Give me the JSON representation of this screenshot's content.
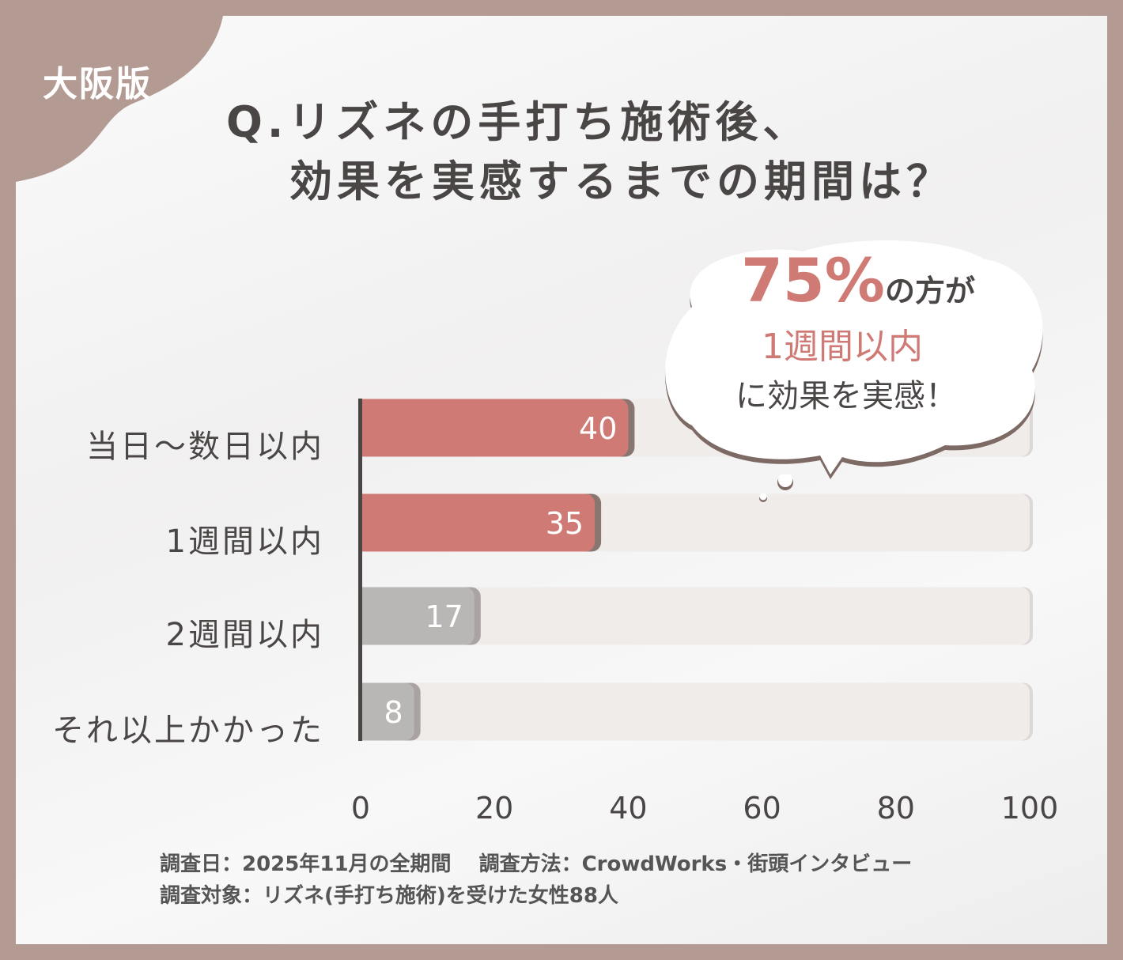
{
  "badge": "大阪版",
  "title": {
    "line1": "Q.リズネの手打ち施術後、",
    "line2": "効果を実感するまでの期間は？"
  },
  "callout": {
    "pct": "75%",
    "tail": "の方が",
    "highlight": "1週間以内",
    "line3": "に効果を実感！"
  },
  "colors": {
    "highlight": "#cf7a74",
    "muted": "#b9b6b6",
    "track": "#f0ecea",
    "shadow": "#8a7670",
    "background": "#b39b93"
  },
  "chart_data": {
    "type": "bar",
    "orientation": "horizontal",
    "categories": [
      "当日～数日以内",
      "1週間以内",
      "2週間以内",
      "それ以上かかった"
    ],
    "values": [
      40,
      35,
      17,
      8
    ],
    "xlim": [
      0,
      100
    ],
    "xticks": [
      "0",
      "20",
      "40",
      "60",
      "80",
      "100"
    ],
    "grid": false
  },
  "footer": {
    "line1": "調査日：2025年11月の全期間　 調査方法：CrowdWorks・街頭インタビュー",
    "line2": "調査対象：リズネ(手打ち施術)を受けた女性88人"
  }
}
